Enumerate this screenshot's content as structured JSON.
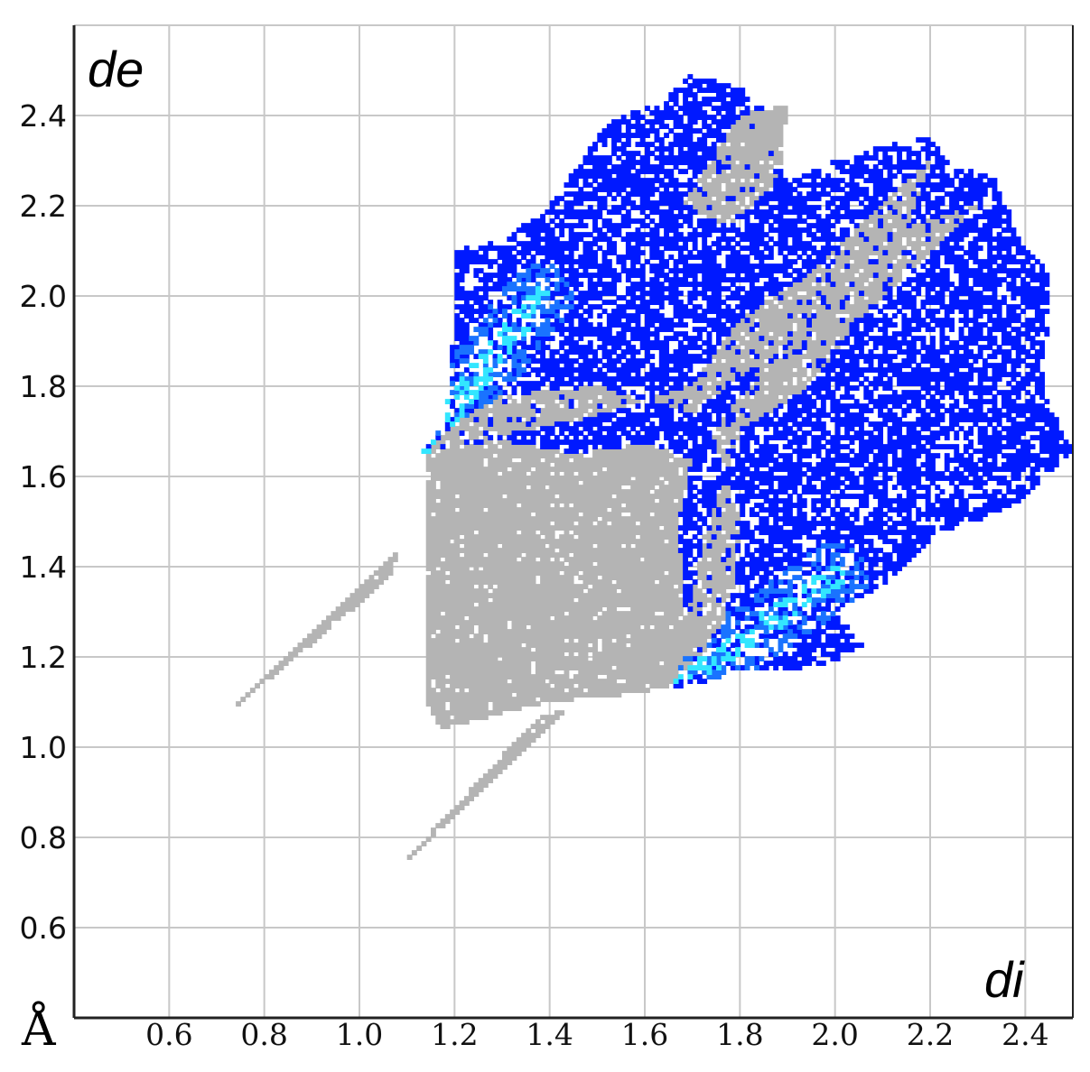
{
  "chart_data": {
    "type": "heatmap",
    "title": "",
    "xlabel": "di",
    "ylabel": "de",
    "unit_label": "Å",
    "xlim": [
      0.4,
      2.5
    ],
    "ylim": [
      0.4,
      2.6
    ],
    "x_ticks": [
      "0.6",
      "0.8",
      "1.0",
      "1.2",
      "1.4",
      "1.6",
      "1.8",
      "2.0",
      "2.2",
      "2.4"
    ],
    "y_ticks": [
      "0.6",
      "0.8",
      "1.0",
      "1.2",
      "1.4",
      "1.6",
      "1.8",
      "2.0",
      "2.2",
      "2.4"
    ],
    "grid": true,
    "colors": {
      "grid": "#c8c8c8",
      "axis": "#222222",
      "full_fingerprint": "#b4b4b4",
      "highlighted_low": "#0019ff",
      "highlighted_mid": "#1a73ff",
      "highlighted_high": "#33e6ff"
    },
    "series": [
      {
        "role": "full fingerprint (gray)",
        "regions": [
          {
            "kind": "polygon",
            "vertices": [
              [
                1.14,
                1.66
              ],
              [
                1.14,
                1.1
              ],
              [
                1.17,
                1.04
              ],
              [
                1.4,
                1.1
              ],
              [
                1.6,
                1.12
              ],
              [
                1.66,
                1.14
              ],
              [
                1.69,
                1.22
              ],
              [
                1.67,
                1.5
              ],
              [
                1.7,
                1.64
              ],
              [
                1.6,
                1.67
              ],
              [
                1.45,
                1.65
              ],
              [
                1.3,
                1.68
              ]
            ]
          },
          {
            "kind": "spike",
            "vertices": [
              [
                0.72,
                1.07
              ],
              [
                1.07,
                1.38
              ],
              [
                1.08,
                1.44
              ],
              [
                0.74,
                1.09
              ]
            ]
          },
          {
            "kind": "spike",
            "vertices": [
              [
                1.07,
                0.72
              ],
              [
                1.38,
                1.07
              ],
              [
                1.44,
                1.08
              ],
              [
                1.09,
                0.74
              ]
            ]
          },
          {
            "kind": "polygon",
            "vertices": [
              [
                1.14,
                1.66
              ],
              [
                1.2,
                1.72
              ],
              [
                1.3,
                1.78
              ],
              [
                1.5,
                1.8
              ],
              [
                1.7,
                1.74
              ],
              [
                1.8,
                1.82
              ],
              [
                1.95,
                1.9
              ],
              [
                2.15,
                2.15
              ],
              [
                2.2,
                2.3
              ],
              [
                2.1,
                2.2
              ],
              [
                1.95,
                2.05
              ],
              [
                1.8,
                1.95
              ],
              [
                1.7,
                1.8
              ],
              [
                1.45,
                1.72
              ]
            ]
          },
          {
            "kind": "polygon",
            "vertices": [
              [
                1.66,
                1.14
              ],
              [
                1.72,
                1.2
              ],
              [
                1.78,
                1.3
              ],
              [
                1.8,
                1.5
              ],
              [
                1.74,
                1.7
              ],
              [
                1.82,
                1.8
              ],
              [
                1.9,
                1.95
              ],
              [
                2.15,
                2.15
              ],
              [
                2.3,
                2.2
              ],
              [
                2.2,
                2.1
              ],
              [
                2.05,
                1.95
              ],
              [
                1.95,
                1.8
              ],
              [
                1.8,
                1.7
              ],
              [
                1.72,
                1.45
              ]
            ]
          },
          {
            "kind": "polygon",
            "vertices": [
              [
                1.68,
                2.2
              ],
              [
                1.8,
                2.4
              ],
              [
                1.9,
                2.42
              ],
              [
                1.88,
                2.25
              ],
              [
                1.78,
                2.15
              ]
            ]
          }
        ]
      },
      {
        "role": "highlighted contacts (blue)",
        "regions": [
          {
            "kind": "polygon",
            "vertices": [
              [
                1.13,
                1.65
              ],
              [
                1.18,
                1.72
              ],
              [
                1.2,
                1.96
              ],
              [
                1.2,
                2.1
              ],
              [
                1.3,
                2.12
              ],
              [
                1.4,
                2.2
              ],
              [
                1.5,
                2.35
              ],
              [
                1.55,
                2.4
              ],
              [
                1.62,
                2.42
              ],
              [
                1.7,
                2.49
              ],
              [
                1.8,
                2.46
              ],
              [
                1.85,
                2.42
              ],
              [
                1.88,
                2.3
              ],
              [
                1.9,
                2.25
              ],
              [
                2.0,
                2.3
              ],
              [
                2.1,
                2.33
              ],
              [
                2.2,
                2.35
              ],
              [
                2.25,
                2.28
              ],
              [
                2.33,
                2.27
              ],
              [
                2.4,
                2.1
              ],
              [
                2.45,
                2.05
              ],
              [
                2.44,
                1.78
              ],
              [
                2.5,
                1.66
              ],
              [
                2.4,
                1.55
              ],
              [
                2.3,
                1.5
              ],
              [
                2.2,
                1.46
              ],
              [
                2.1,
                1.36
              ],
              [
                2.0,
                1.3
              ],
              [
                2.06,
                1.22
              ],
              [
                2.0,
                1.19
              ],
              [
                1.9,
                1.17
              ],
              [
                1.8,
                1.17
              ],
              [
                1.75,
                1.15
              ],
              [
                1.66,
                1.13
              ],
              [
                1.69,
                1.22
              ],
              [
                1.67,
                1.5
              ],
              [
                1.7,
                1.64
              ],
              [
                1.6,
                1.67
              ],
              [
                1.45,
                1.65
              ],
              [
                1.3,
                1.68
              ]
            ]
          }
        ],
        "density_ridges": [
          {
            "from": [
              1.13,
              1.66
            ],
            "to": [
              1.38,
              2.0
            ]
          },
          {
            "from": [
              1.66,
              1.13
            ],
            "to": [
              2.0,
              1.38
            ]
          }
        ]
      }
    ]
  }
}
